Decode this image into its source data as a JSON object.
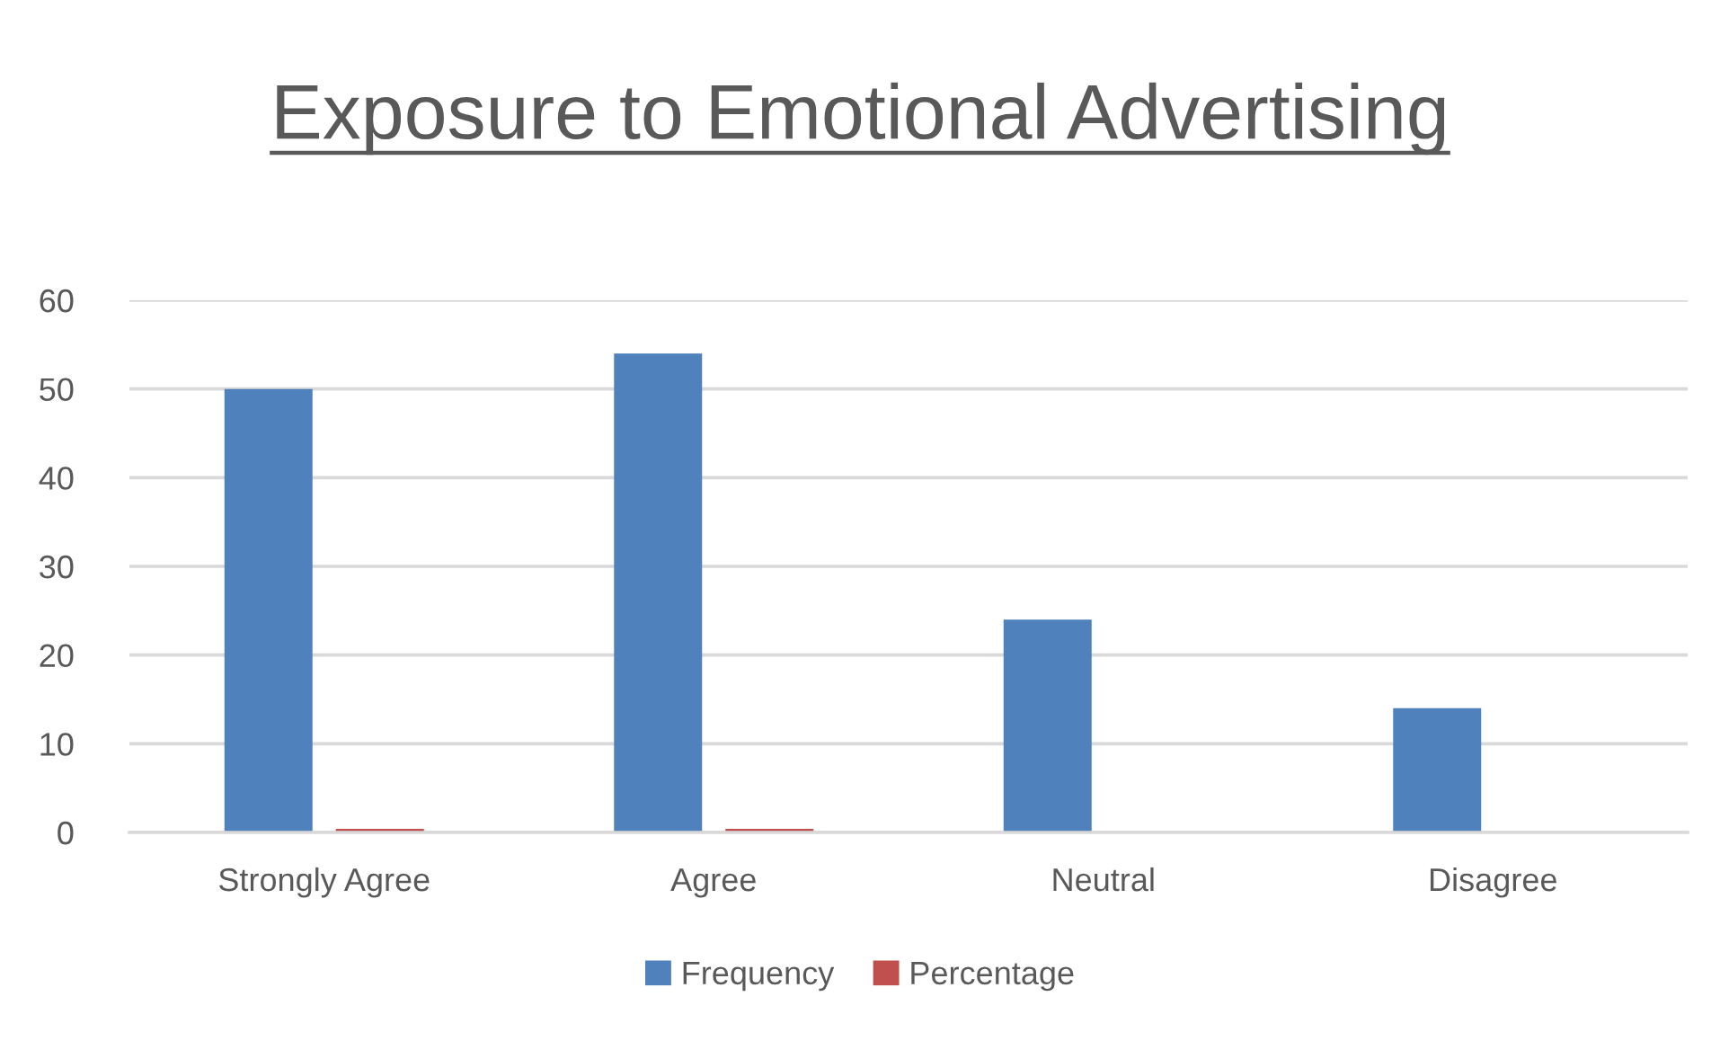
{
  "chart_data": {
    "type": "bar",
    "title": "Exposure to Emotional Advertising",
    "categories": [
      "Strongly Agree",
      "Agree",
      "Neutral",
      "Disagree"
    ],
    "series": [
      {
        "name": "Frequency",
        "color": "#4f81bd",
        "values": [
          50,
          54,
          24,
          14
        ]
      },
      {
        "name": "Percentage",
        "color": "#c0504d",
        "values": [
          0.4,
          0.4,
          null,
          null
        ]
      }
    ],
    "ylim": [
      0,
      60
    ],
    "yticks": [
      0,
      10,
      20,
      30,
      40,
      50,
      60
    ],
    "grid": "y",
    "legend": "bottom"
  }
}
